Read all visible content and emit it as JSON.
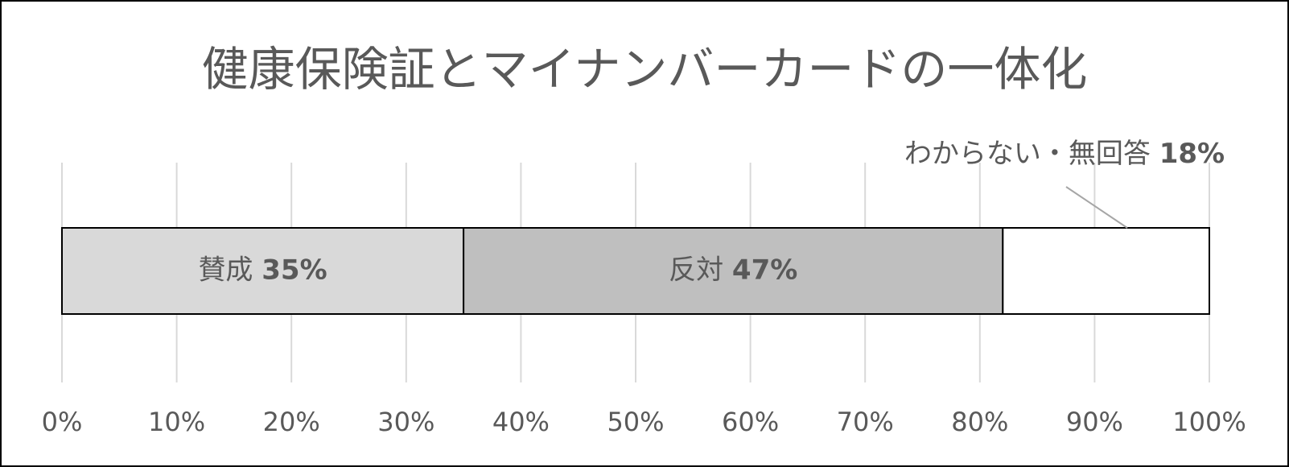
{
  "chart_data": {
    "type": "stacked-bar-horizontal",
    "title": "健康保険証とマイナンバーカードの一体化",
    "series": [
      {
        "name": "賛成",
        "color": "#d9d9d9",
        "values": [
          35
        ],
        "value_labels": [
          "35%"
        ]
      },
      {
        "name": "反対",
        "color": "#bfbfbf",
        "values": [
          47
        ],
        "value_labels": [
          "47%"
        ]
      },
      {
        "name": "わからない・無回答",
        "color": "#ffffff",
        "values": [
          18
        ],
        "value_labels": [
          "18%"
        ]
      }
    ],
    "xlim": [
      0,
      100
    ],
    "xticks": [
      {
        "value": 0,
        "label": "0%"
      },
      {
        "value": 10,
        "label": "10%"
      },
      {
        "value": 20,
        "label": "20%"
      },
      {
        "value": 30,
        "label": "30%"
      },
      {
        "value": 40,
        "label": "40%"
      },
      {
        "value": 50,
        "label": "50%"
      },
      {
        "value": 60,
        "label": "60%"
      },
      {
        "value": 70,
        "label": "70%"
      },
      {
        "value": 80,
        "label": "80%"
      },
      {
        "value": 90,
        "label": "90%"
      },
      {
        "value": 100,
        "label": "100%"
      }
    ],
    "grid": true
  }
}
